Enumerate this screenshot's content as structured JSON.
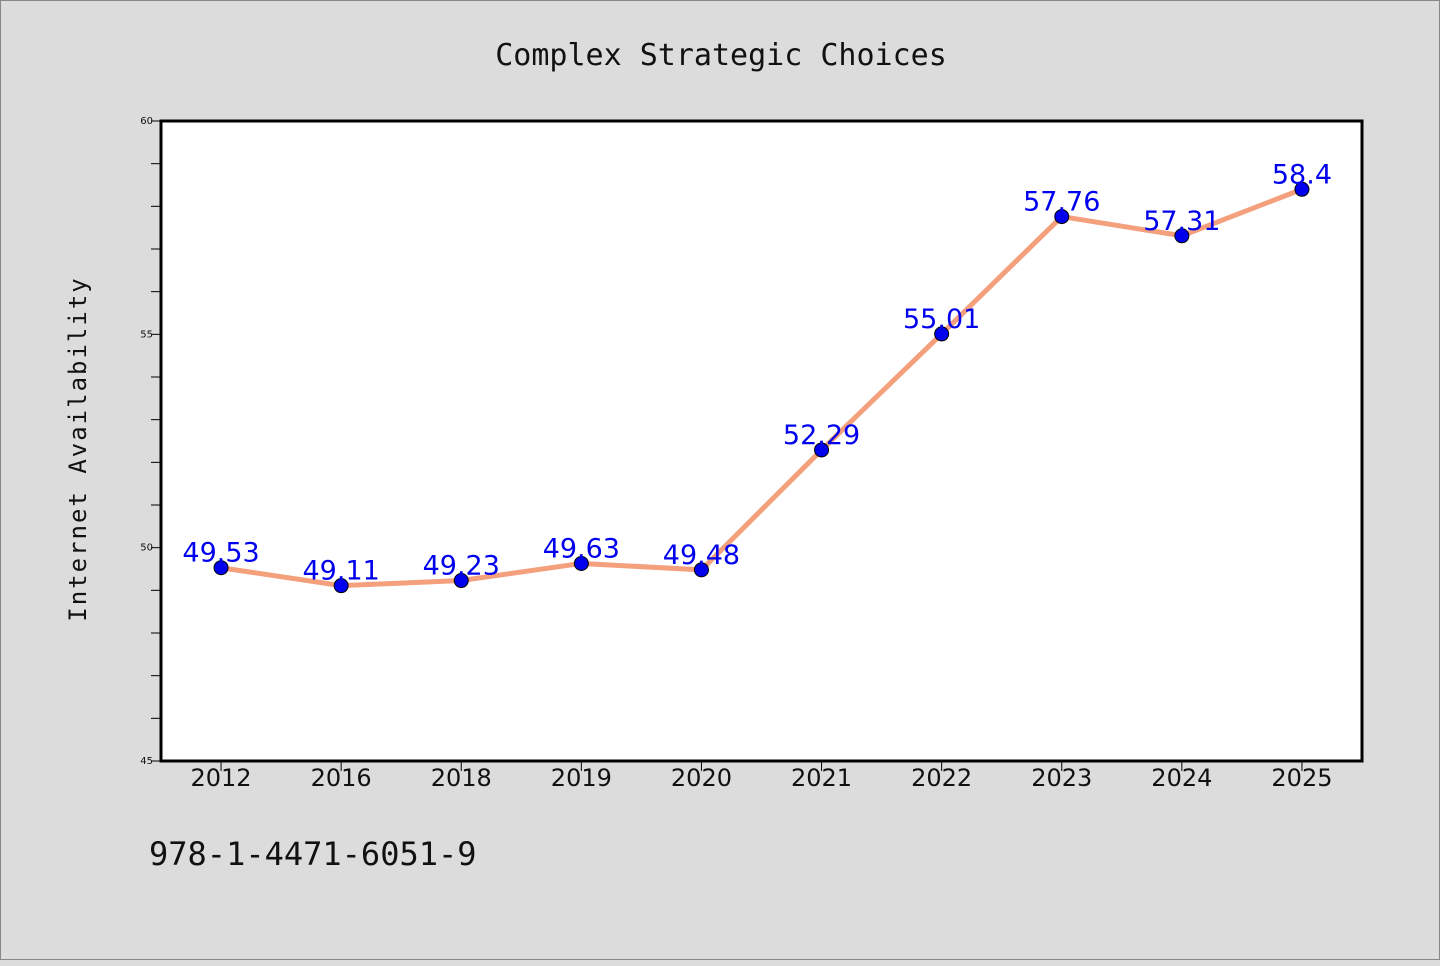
{
  "colors": {
    "line": "#f4a07c",
    "marker": "#0000ee",
    "label": "#0000ee",
    "plot_bg": "#ffffff",
    "page_bg": "#dcdcdc"
  },
  "footer_text": "978-1-4471-6051-9",
  "chart_data": {
    "type": "line",
    "title": "Complex Strategic Choices",
    "xlabel": "",
    "ylabel": "Internet Availability",
    "categories": [
      "2012",
      "2016",
      "2018",
      "2019",
      "2020",
      "2021",
      "2022",
      "2023",
      "2024",
      "2025"
    ],
    "series": [
      {
        "values": [
          49.53,
          49.11,
          49.23,
          49.63,
          49.48,
          52.29,
          55.01,
          57.76,
          57.31,
          58.4
        ],
        "labels": [
          "49.53",
          "49.11",
          "49.23",
          "49.63",
          "49.48",
          "52.29",
          "55.01",
          "57.76",
          "57.31",
          "58.4"
        ]
      }
    ],
    "ylim": [
      45,
      60
    ],
    "yticks": [
      "45",
      "50",
      "55",
      "60"
    ],
    "grid": false,
    "legend": "none"
  }
}
